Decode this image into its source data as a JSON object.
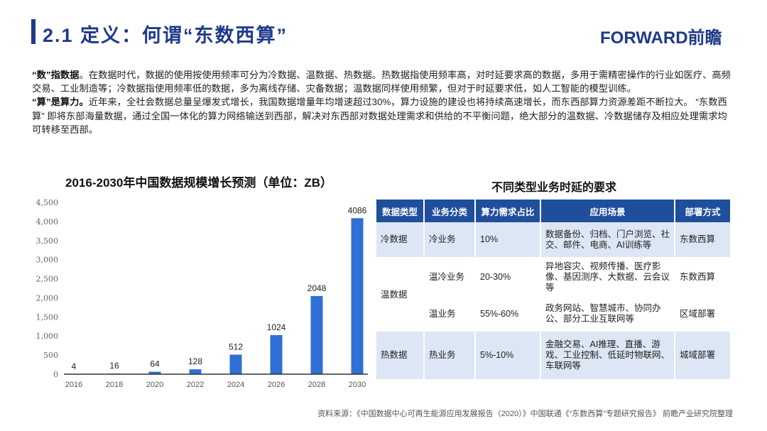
{
  "header": {
    "title": "2.1 定义：何谓“东数西算”",
    "logo": "FORWARD前瞻"
  },
  "paragraphs": [
    {
      "lead": "“数”指数据",
      "text": "。在数据时代，数据的使用按使用频率可分为冷数据、温数据、热数据。热数据指使用频率高，对时延要求高的数据，多用于需精密操作的行业如医疗、高频交易、工业制造等；冷数据指使用频率低的数据，多为离线存储、灾备数据；温数据同样使用频繁，但对于时延要求低，如人工智能的模型训练。"
    },
    {
      "lead": "“算”是算力。",
      "text": "近年来，全社会数据总量呈爆发式增长，我国数据增量年均增速超过30%，算力设施的建设也将持续高速增长，而东西部算力资源差距不断拉大。 “东数西算” 即将东部海量数据，通过全国一体化的算力网络输送到西部，解决对东西部对数据处理需求和供给的不平衡问题，绝大部分的温数据、冷数据储存及相应处理需求均可转移至西部。"
    }
  ],
  "chart_data": {
    "type": "bar",
    "title": "2016-2030年中国数据规模增长预测（单位：ZB）",
    "categories": [
      "2016",
      "2018",
      "2020",
      "2022",
      "2024",
      "2026",
      "2028",
      "2030"
    ],
    "values": [
      4,
      16,
      64,
      128,
      512,
      1024,
      2048,
      4086
    ],
    "yticks": [
      "0",
      "500",
      "1,000",
      "1,500",
      "2,000",
      "2,500",
      "3,000",
      "3,500",
      "4,000",
      "4,500"
    ],
    "ylim": [
      0,
      4500
    ],
    "grid": false,
    "bar_color": "#2f6fd6"
  },
  "table": {
    "title": "不同类型业务时延的要求",
    "headers": [
      "数据类型",
      "业务分类",
      "算力需求占比",
      "应用场景",
      "部署方式"
    ],
    "rows": [
      {
        "type": "冷数据",
        "biz": "冷业务",
        "share": "10%",
        "scene": "数据备份、归档、门户浏览、社交、邮件、电商、AI训练等",
        "deploy": "东数西算"
      },
      {
        "type": "温数据",
        "biz": "温冷业务",
        "share": "20-30%",
        "scene": "异地容灾、视频传播、医疗影像、基因测序、大数据、云会议等",
        "deploy": "东数西算"
      },
      {
        "type": "",
        "biz": "温业务",
        "share": "55%-60%",
        "scene": "政务网站、智慧城市、协同办公、部分工业互联网等",
        "deploy": "区域部署"
      },
      {
        "type": "热数据",
        "biz": "热业务",
        "share": "5%-10%",
        "scene": "金融交易、AI推理、直播、游戏、工业控制、低延时物联网、车联网等",
        "deploy": "城域部署"
      }
    ]
  },
  "source": "资料来源：《中国数据中心可再生能源应用发展报告（2020）》中国联通《“东数西算”专题研究报告》 前瞻产业研究院整理"
}
